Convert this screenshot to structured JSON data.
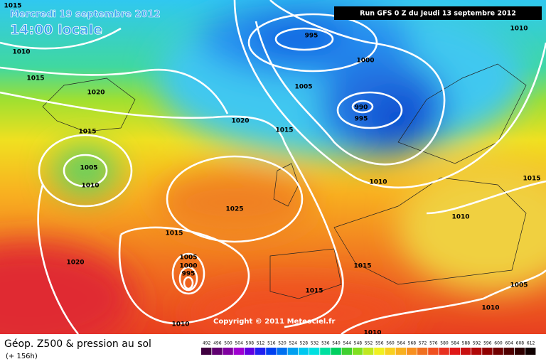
{
  "header": {
    "date": "Mercredi 19 septembre 2012",
    "time": "14:00 locale",
    "run": "Run GFS 0 Z du Jeudi 13 septembre 2012"
  },
  "isobar_labels": [
    "1015",
    "1010",
    "1015",
    "1020",
    "1015",
    "1005",
    "1010",
    "1020",
    "1015",
    "1005",
    "995",
    "1000",
    "990",
    "995",
    "1010",
    "1010",
    "1015",
    "1010",
    "1025",
    "1015",
    "1020",
    "1005",
    "1000",
    "995",
    "1015",
    "1015",
    "1005",
    "1010",
    "1010",
    "1010"
  ],
  "copyright": "Copyright © 2011 Meteociel.fr",
  "legend": {
    "title": "Géop. Z500 & pression au sol",
    "subtitle": "(+ 156h)",
    "scale": [
      "492",
      "496",
      "500",
      "504",
      "508",
      "512",
      "516",
      "520",
      "524",
      "528",
      "532",
      "536",
      "540",
      "544",
      "548",
      "552",
      "556",
      "560",
      "564",
      "568",
      "572",
      "576",
      "580",
      "584",
      "588",
      "592",
      "596",
      "600",
      "604",
      "608",
      "612"
    ]
  }
}
